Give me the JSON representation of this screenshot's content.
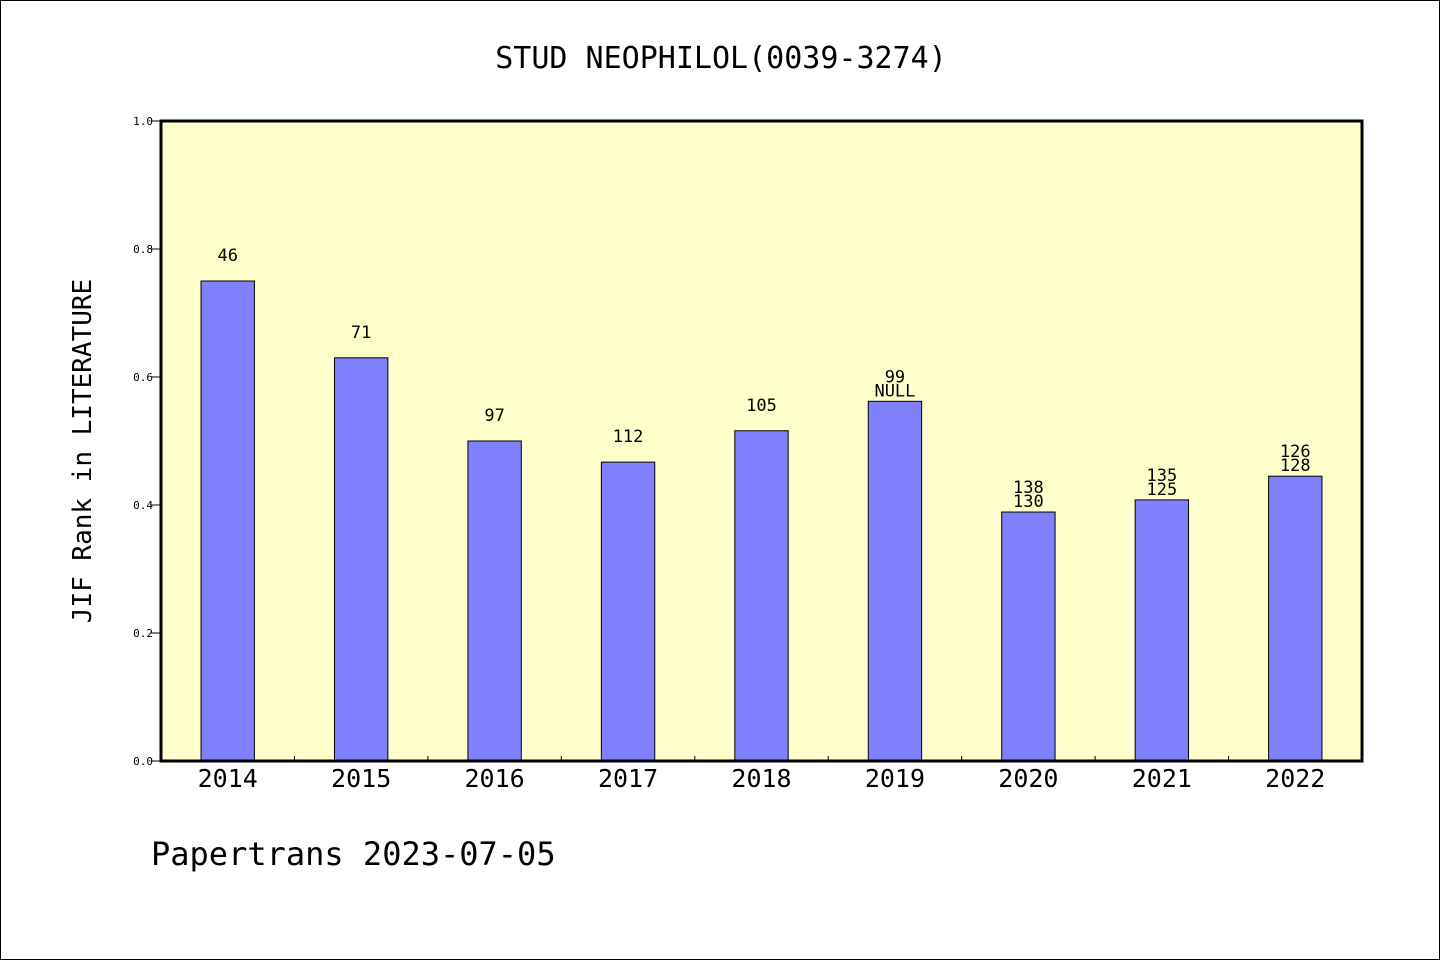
{
  "chart_data": {
    "type": "bar",
    "title": "STUD NEOPHILOL(0039-3274)",
    "xlabel": "",
    "ylabel": "JIF Rank in LITERATURE",
    "categories": [
      "2014",
      "2015",
      "2016",
      "2017",
      "2018",
      "2019",
      "2020",
      "2021",
      "2022"
    ],
    "values": [
      0.75,
      0.63,
      0.5,
      0.467,
      0.516,
      0.562,
      0.389,
      0.408,
      0.445
    ],
    "bar_labels": [
      [
        "46"
      ],
      [
        "71"
      ],
      [
        "97"
      ],
      [
        "112"
      ],
      [
        "105"
      ],
      [
        "99",
        "NULL"
      ],
      [
        "138",
        "130"
      ],
      [
        "135",
        "125"
      ],
      [
        "126",
        "128"
      ]
    ],
    "ylim": [
      0,
      1.0
    ],
    "yticks": [
      "0.0",
      "0.2",
      "0.4",
      "0.6",
      "0.8",
      "1.0"
    ],
    "grid": false,
    "colors": {
      "plot_background": "#ffffcc",
      "bar_fill": "#8080ff",
      "bar_stroke": "#000000"
    }
  },
  "footer": "Papertrans 2023-07-05"
}
